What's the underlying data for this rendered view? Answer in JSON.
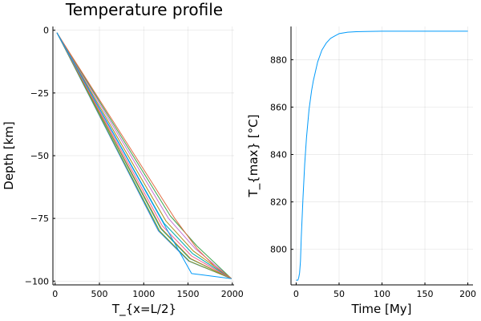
{
  "chart_data": [
    {
      "type": "line",
      "title": "Temperature profile",
      "xlabel": "T_{x=L/2}",
      "ylabel": "Depth [km]",
      "xlim": [
        -25,
        2020
      ],
      "ylim": [
        -101.5,
        1.5
      ],
      "xticks": [
        0,
        500,
        1000,
        1500,
        2000
      ],
      "xtick_labels": [
        "0",
        "500",
        "1000",
        "1500",
        "2000"
      ],
      "yticks": [
        0,
        -25,
        -50,
        -75,
        -100
      ],
      "ytick_labels": [
        "0",
        "−25",
        "−50",
        "−75",
        "−100"
      ],
      "grid": true,
      "legend": "none",
      "series_colors": [
        "#009AFA",
        "#E26F46",
        "#3EA44E",
        "#C371D2",
        "#AC8E18",
        "#00AAAE",
        "#ED5E93",
        "#C68225",
        "#00A98D",
        "#8E971D",
        "#00A9CD",
        "#9B7FE9"
      ],
      "series": [
        {
          "name": "y1",
          "x": [
            20,
            1540,
            1990
          ],
          "y": [
            -1,
            -97,
            -99
          ]
        },
        {
          "name": "y2",
          "x": [
            20,
            1350,
            1600,
            1800,
            1990
          ],
          "y": [
            -1,
            -75,
            -87,
            -94,
            -99
          ]
        },
        {
          "name": "y3",
          "x": [
            20,
            1300,
            1600,
            1990
          ],
          "y": [
            -1,
            -74,
            -86,
            -99
          ]
        },
        {
          "name": "y4",
          "x": [
            20,
            1280,
            1580,
            1990
          ],
          "y": [
            -1,
            -75,
            -87,
            -99
          ]
        },
        {
          "name": "y5",
          "x": [
            20,
            1250,
            1560,
            1990
          ],
          "y": [
            -1,
            -76,
            -88,
            -99
          ]
        },
        {
          "name": "y6",
          "x": [
            20,
            1230,
            1550,
            1990
          ],
          "y": [
            -1,
            -77,
            -89,
            -99
          ]
        },
        {
          "name": "y7",
          "x": [
            20,
            1210,
            1540,
            1990
          ],
          "y": [
            -1,
            -78,
            -90,
            -99
          ]
        },
        {
          "name": "y8",
          "x": [
            20,
            1200,
            1530,
            1990
          ],
          "y": [
            -1,
            -79,
            -91,
            -99
          ]
        },
        {
          "name": "y9",
          "x": [
            20,
            1190,
            1520,
            1990
          ],
          "y": [
            -1,
            -79,
            -91,
            -99
          ]
        },
        {
          "name": "y10",
          "x": [
            20,
            1180,
            1515,
            1990
          ],
          "y": [
            -1,
            -80,
            -92,
            -99
          ]
        },
        {
          "name": "y11",
          "x": [
            20,
            1170,
            1510,
            1990
          ],
          "y": [
            -1,
            -80,
            -92,
            -99
          ]
        },
        {
          "name": "y12",
          "x": [
            20,
            1165,
            1505,
            1990
          ],
          "y": [
            -1,
            -80,
            -92,
            -99
          ]
        }
      ]
    },
    {
      "type": "line",
      "title": "",
      "xlabel": "Time [My]",
      "ylabel": "T_{max} [°C]",
      "xlim": [
        -6,
        206
      ],
      "ylim": [
        785,
        894
      ],
      "xticks": [
        0,
        50,
        100,
        150,
        200
      ],
      "xtick_labels": [
        "0",
        "50",
        "100",
        "150",
        "200"
      ],
      "yticks": [
        800,
        820,
        840,
        860,
        880
      ],
      "ytick_labels": [
        "800",
        "820",
        "840",
        "860",
        "880"
      ],
      "grid": true,
      "legend": "none",
      "series_colors": [
        "#009AFA"
      ],
      "series": [
        {
          "name": "y1",
          "x": [
            0,
            2,
            3,
            4,
            5,
            6,
            8,
            10,
            12,
            15,
            18,
            20,
            25,
            30,
            35,
            40,
            45,
            50,
            60,
            70,
            80,
            100,
            120,
            150,
            200
          ],
          "y": [
            787,
            787,
            788,
            790,
            795,
            805,
            822,
            836,
            847,
            859,
            867,
            871,
            879,
            884,
            887,
            889,
            890,
            891,
            891.6,
            891.8,
            891.9,
            892,
            892,
            892,
            892
          ]
        }
      ]
    }
  ]
}
